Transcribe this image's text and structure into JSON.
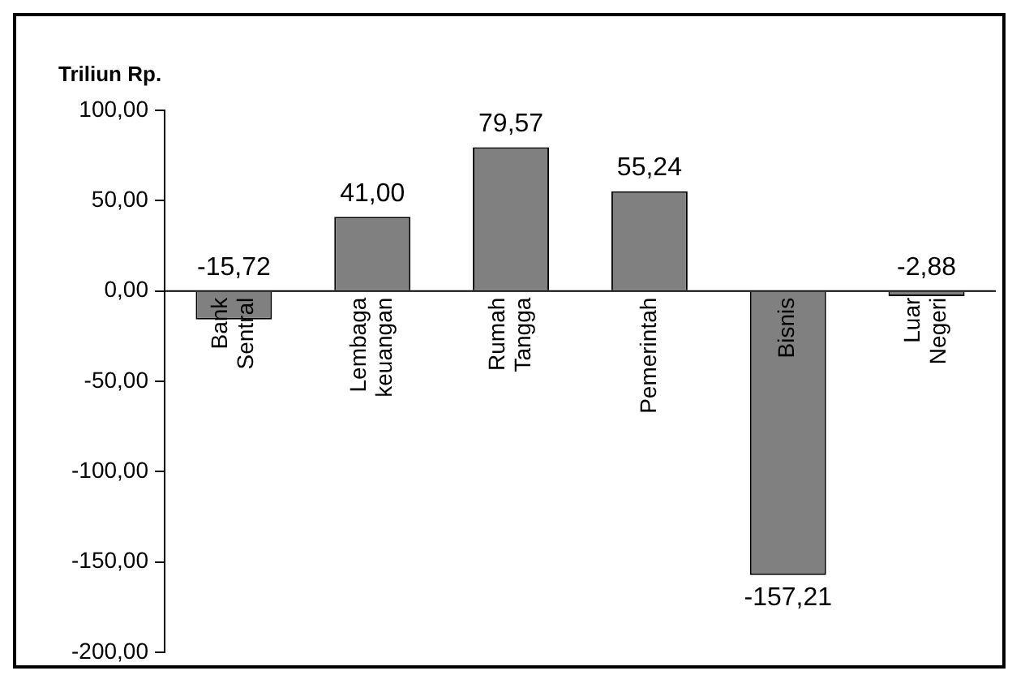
{
  "chart_data": {
    "type": "bar",
    "title": "Triliun Rp.",
    "categories": [
      "Bank Sentral",
      "Lembaga keuangan",
      "Rumah Tangga",
      "Pemerintah",
      "Bisnis",
      "Luar Negeri"
    ],
    "values": [
      -15.72,
      41.0,
      79.57,
      55.24,
      -157.21,
      -2.88
    ],
    "value_labels": [
      "-15,72",
      "41,00",
      "79,57",
      "55,24",
      "-157,21",
      "-2,88"
    ],
    "color": "#808080",
    "ylim": [
      -200,
      100
    ],
    "yticks": [
      {
        "value": -200,
        "label": "-200,00"
      },
      {
        "value": -150,
        "label": "-150,00"
      },
      {
        "value": -100,
        "label": "-100,00"
      },
      {
        "value": -50,
        "label": "-50,00"
      },
      {
        "value": 0,
        "label": "0,00"
      },
      {
        "value": 50,
        "label": "50,00"
      },
      {
        "value": 100,
        "label": "100,00"
      }
    ],
    "grid": false,
    "legend": false
  }
}
